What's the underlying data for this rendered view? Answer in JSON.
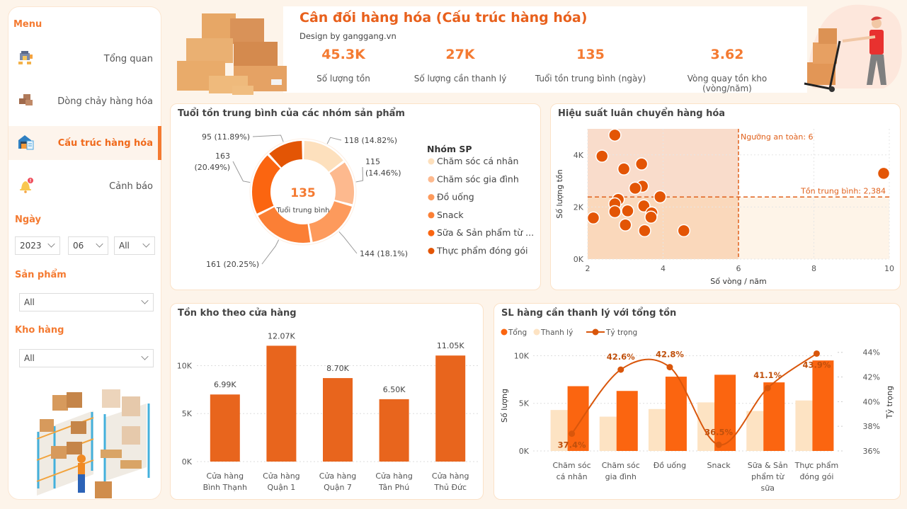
{
  "sidebar": {
    "menu_title": "Menu",
    "items": [
      {
        "label": "Tổng quan",
        "icon": "warehouse-icon",
        "active": false
      },
      {
        "label": "Dòng chảy hàng hóa",
        "icon": "boxes-icon",
        "active": false
      },
      {
        "label": "Cấu trúc hàng hóa",
        "icon": "warehouse-clipboard-icon",
        "active": true
      },
      {
        "label": "Cảnh báo",
        "icon": "bell-alert-icon",
        "active": false
      }
    ],
    "filters": {
      "date_label": "Ngày",
      "year": "2023",
      "month": "06",
      "day": "All",
      "product_label": "Sản phẩm",
      "product": "All",
      "warehouse_label": "Kho hàng",
      "warehouse": "All"
    }
  },
  "header": {
    "title": "Cân đối hàng hóa (Cấu trúc hàng hóa)",
    "subtitle": "Design by ganggang.vn",
    "kpis": [
      {
        "value": "45.3K",
        "label": "Số lượng tồn"
      },
      {
        "value": "27K",
        "label": "Số lượng cần thanh lý"
      },
      {
        "value": "135",
        "label": "Tuổi tồn trung bình (ngày)"
      },
      {
        "value": "3.62",
        "label": "Vòng quay tồn kho (vòng/năm)"
      }
    ]
  },
  "colors": {
    "accent": "#f47a31",
    "dark_orange": "#e35a0a",
    "bar": "#e8651d",
    "light": "#fde3c3",
    "background": "#fdf4ea"
  },
  "chart_data": [
    {
      "id": "donut",
      "type": "pie",
      "title": "Tuổi tồn trung bình của các nhóm sản phẩm",
      "center_value": "135",
      "center_label": "Tuổi trung bình",
      "legend_title": "Nhóm SP",
      "legend_position": "right",
      "slices": [
        {
          "name": "Chăm sóc cá nhân",
          "legend": "Chăm sóc cá nhân",
          "value": 118,
          "pct": "14.82%",
          "label": "118 (14.82%)",
          "color": "#fde0bd"
        },
        {
          "name": "Chăm sóc gia đình",
          "legend": "Chăm sóc gia đình",
          "value": 115,
          "pct": "14.46%",
          "label": "115 (14.46%)",
          "color": "#fdb98e"
        },
        {
          "name": "Đồ uống",
          "legend": "Đồ uống",
          "value": 144,
          "pct": "18.1%",
          "label": "144 (18.1%)",
          "color": "#fd9a5c"
        },
        {
          "name": "Snack",
          "legend": "Snack",
          "value": 161,
          "pct": "20.25%",
          "label": "161 (20.25%)",
          "color": "#fb7f35"
        },
        {
          "name": "Sữa & Sản phẩm từ sữa",
          "legend": "Sữa & Sản phẩm từ ...",
          "value": 163,
          "pct": "20.49%",
          "label": "163 (20.49%)",
          "color": "#fb6510"
        },
        {
          "name": "Thực phẩm đóng gói",
          "legend": "Thực phẩm đóng gói",
          "value": 95,
          "pct": "11.89%",
          "label": "95 (11.89%)",
          "color": "#e35505"
        }
      ]
    },
    {
      "id": "scatter",
      "type": "scatter",
      "title": "Hiệu suất luân chuyển hàng hóa",
      "xlabel": "Số vòng / năm",
      "ylabel": "Số lượng tồn",
      "xlim": [
        2,
        10
      ],
      "ylim": [
        0,
        5000
      ],
      "x_ticks": [
        2,
        4,
        6,
        8,
        10
      ],
      "y_ticks": [
        {
          "v": 0,
          "label": "0K"
        },
        {
          "v": 2000,
          "label": "2K"
        },
        {
          "v": 4000,
          "label": "4K"
        }
      ],
      "x_reference": {
        "value": 6,
        "label": "Ngưỡng an toàn: 6"
      },
      "y_reference": {
        "value": 2384,
        "label": "Tồn trung bình: 2,384"
      },
      "grid": true,
      "points": [
        {
          "x": 2.72,
          "y": 4760
        },
        {
          "x": 2.38,
          "y": 3950
        },
        {
          "x": 3.43,
          "y": 3650
        },
        {
          "x": 2.96,
          "y": 3460
        },
        {
          "x": 3.45,
          "y": 2800
        },
        {
          "x": 3.26,
          "y": 2720
        },
        {
          "x": 3.92,
          "y": 2390
        },
        {
          "x": 2.81,
          "y": 2290
        },
        {
          "x": 2.72,
          "y": 2120
        },
        {
          "x": 3.49,
          "y": 2040
        },
        {
          "x": 2.72,
          "y": 1820
        },
        {
          "x": 3.06,
          "y": 1850
        },
        {
          "x": 3.7,
          "y": 1770
        },
        {
          "x": 3.68,
          "y": 1610
        },
        {
          "x": 2.15,
          "y": 1580
        },
        {
          "x": 3.0,
          "y": 1310
        },
        {
          "x": 3.51,
          "y": 1090
        },
        {
          "x": 4.55,
          "y": 1090
        },
        {
          "x": 9.85,
          "y": 3290
        }
      ]
    },
    {
      "id": "store_bar",
      "type": "bar",
      "title": "Tồn kho theo cửa hàng",
      "categories": [
        [
          "Cửa hàng",
          "Bình Thạnh"
        ],
        [
          "Cửa hàng",
          "Quận 1"
        ],
        [
          "Cửa hàng",
          "Quận 7"
        ],
        [
          "Cửa hàng",
          "Tân Phú"
        ],
        [
          "Cửa hàng",
          "Thủ Đức"
        ]
      ],
      "values": [
        6990,
        12070,
        8700,
        6500,
        11050
      ],
      "value_labels": [
        "6.99K",
        "12.07K",
        "8.70K",
        "6.50K",
        "11.05K"
      ],
      "ylim": [
        0,
        13500
      ],
      "y_ticks": [
        {
          "v": 0,
          "label": "0K"
        },
        {
          "v": 5000,
          "label": "5K"
        },
        {
          "v": 10000,
          "label": "10K"
        }
      ],
      "xlabel": "",
      "ylabel": "",
      "grid": true
    },
    {
      "id": "combo",
      "type": "bar",
      "title": "SL hàng cần thanh lý với tổng tồn",
      "legend": [
        {
          "name": "Tổng",
          "kind": "bar",
          "color": "#fb6510"
        },
        {
          "name": "Thanh lý",
          "kind": "bar",
          "color": "#fde3c3"
        },
        {
          "name": "Tỷ trọng",
          "kind": "line",
          "color": "#d9560b"
        }
      ],
      "legend_position": "top-left",
      "categories": [
        [
          "Chăm sóc",
          "cá nhân"
        ],
        [
          "Chăm sóc",
          "gia đình"
        ],
        [
          "Đồ uống"
        ],
        [
          "Snack"
        ],
        [
          "Sữa & Sản",
          "phẩm từ",
          "sữa"
        ],
        [
          "Thực phẩm",
          "đóng gói"
        ]
      ],
      "series": [
        {
          "name": "Thanh lý",
          "values": [
            4300,
            3600,
            4400,
            5100,
            4200,
            5300
          ]
        },
        {
          "name": "Tổng",
          "values": [
            6800,
            6300,
            7800,
            8000,
            7200,
            9500
          ]
        },
        {
          "name": "Tỷ trọng",
          "axis": "right",
          "values": [
            37.4,
            42.6,
            42.8,
            36.5,
            41.1,
            43.9
          ],
          "labels": [
            "37.4%",
            "42.6%",
            "42.8%",
            "36.5%",
            "41.1%",
            "43.9%"
          ]
        }
      ],
      "ylabel": "Số lượng",
      "y2label": "Tỷ trọng",
      "ylim": [
        0,
        11000
      ],
      "y_ticks": [
        {
          "v": 0,
          "label": "0K"
        },
        {
          "v": 5000,
          "label": "5K"
        },
        {
          "v": 10000,
          "label": "10K"
        }
      ],
      "y2lim": [
        36,
        44.5
      ],
      "y2_ticks": [
        {
          "v": 36,
          "label": "36%"
        },
        {
          "v": 38,
          "label": "38%"
        },
        {
          "v": 40,
          "label": "40%"
        },
        {
          "v": 42,
          "label": "42%"
        },
        {
          "v": 44,
          "label": "44%"
        }
      ]
    }
  ]
}
